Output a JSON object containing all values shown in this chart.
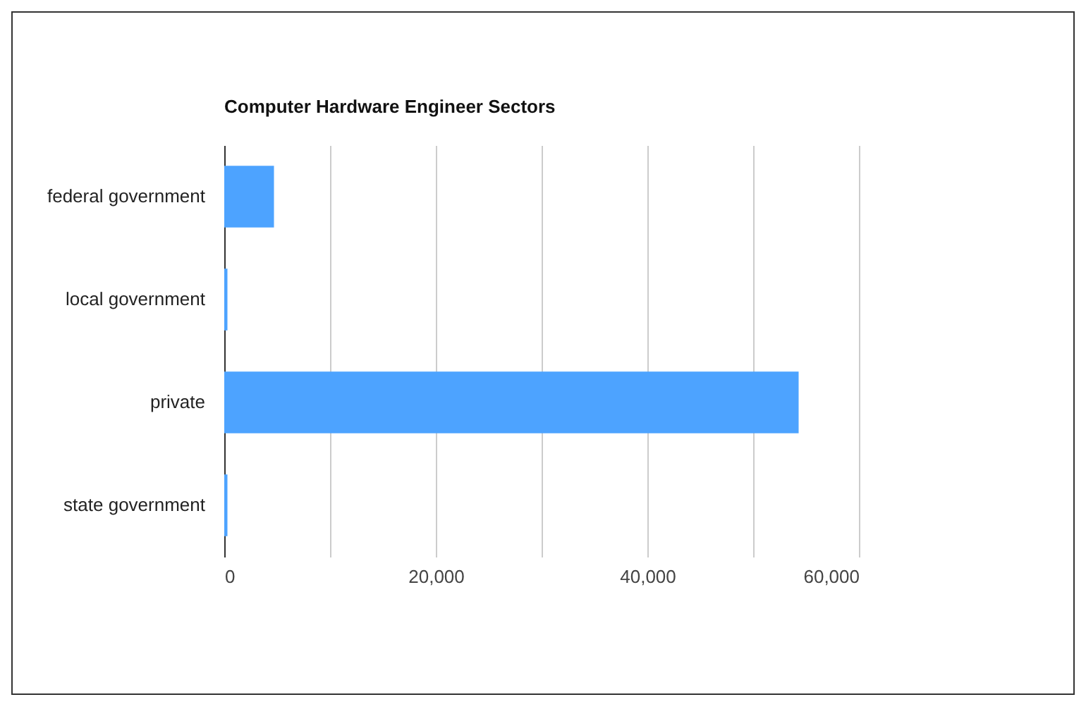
{
  "chart_data": {
    "type": "bar",
    "orientation": "horizontal",
    "title": "Computer Hardware Engineer Sectors",
    "categories": [
      "federal government",
      "local government",
      "private",
      "state government"
    ],
    "values": [
      4700,
      300,
      54300,
      300
    ],
    "color": "#4da3ff",
    "xlim": [
      0,
      60000
    ],
    "xticks": [
      0,
      {
        "value": 10000,
        "label": null
      },
      {
        "value": 20000,
        "label": "20,000"
      },
      {
        "value": 30000,
        "label": null
      },
      {
        "value": 40000,
        "label": "40,000"
      },
      {
        "value": 50000,
        "label": null
      },
      {
        "value": 60000,
        "label": "60,000"
      }
    ],
    "grid": "x"
  }
}
